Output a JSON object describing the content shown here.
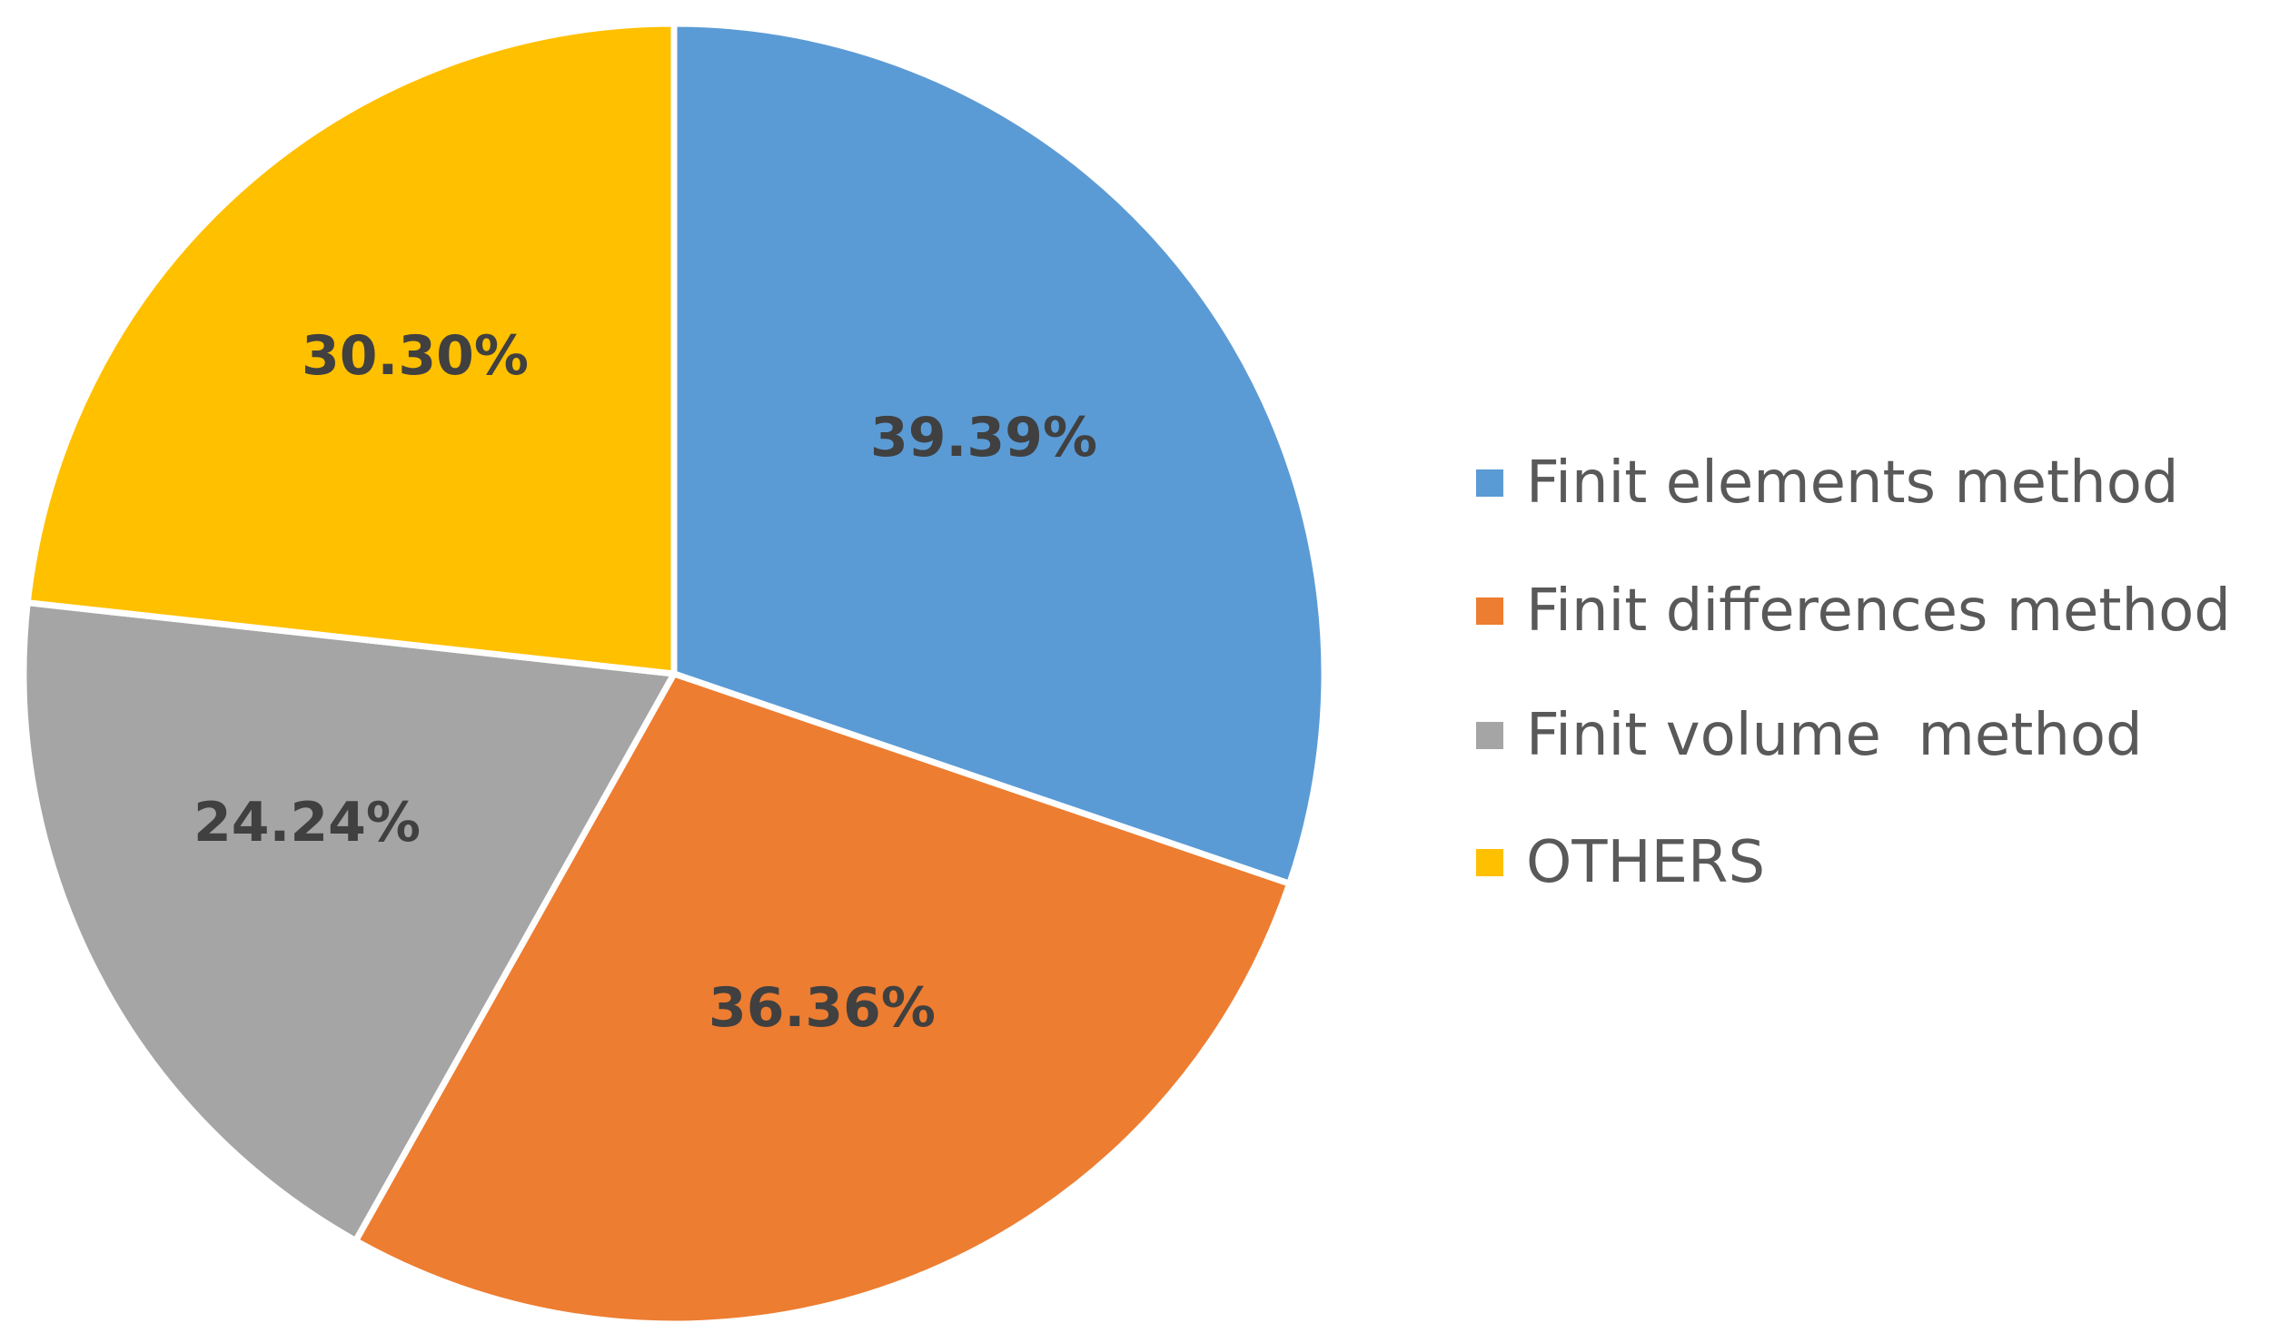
{
  "chart_data": {
    "type": "pie",
    "categories": [
      "Finit elements method",
      "Finit differences method",
      "Finit volume  method",
      "OTHERS"
    ],
    "values": [
      39.39,
      36.36,
      24.24,
      30.3
    ],
    "data_labels": [
      "39.39%",
      "36.36%",
      "24.24%",
      "30.30%"
    ],
    "colors": [
      "#5B9BD5",
      "#ED7D31",
      "#A5A5A5",
      "#FFC000"
    ],
    "title": "",
    "legend_placement": "right",
    "start_angle": "12 o'clock",
    "direction": "clockwise"
  }
}
